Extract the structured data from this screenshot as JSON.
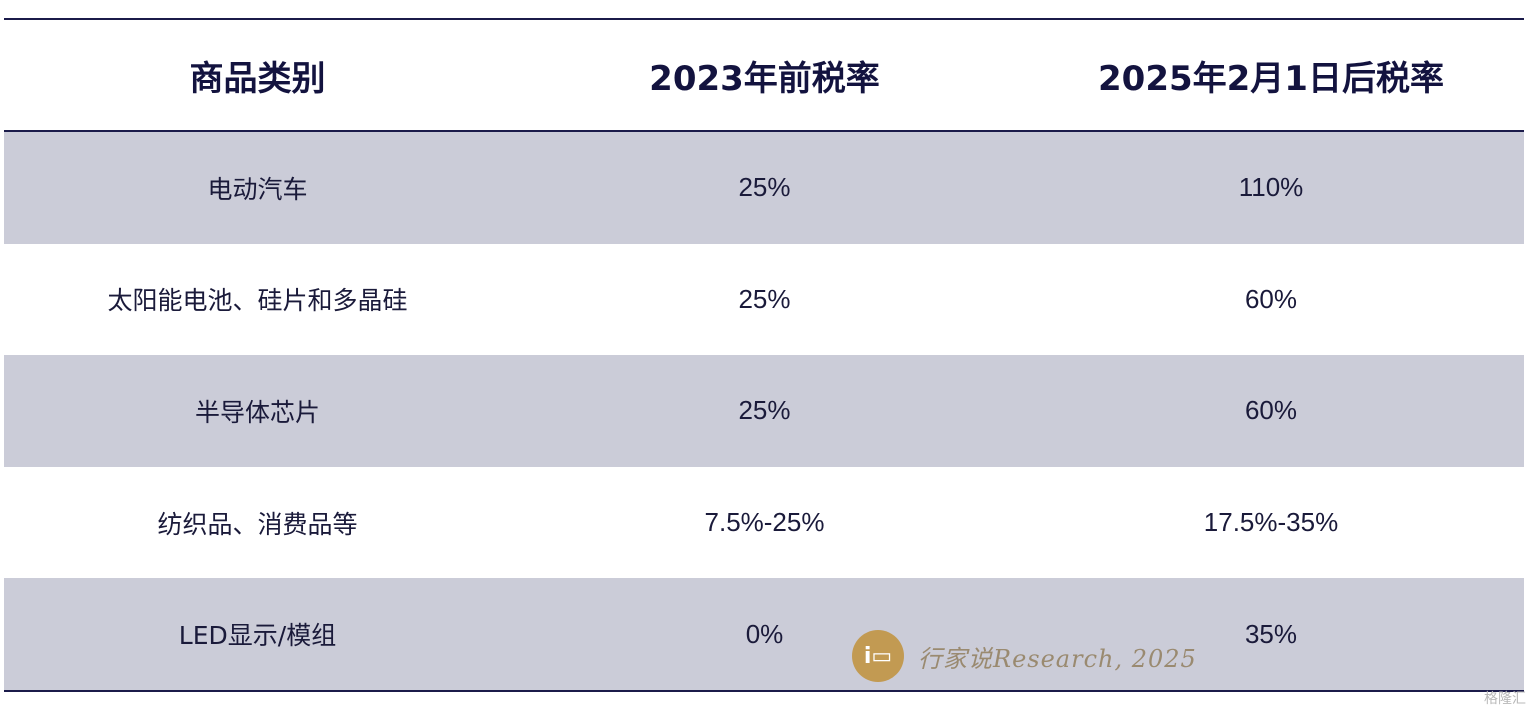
{
  "chart_data": {
    "type": "table",
    "columns": [
      "商品类别",
      "2023年前税率",
      "2025年2月1日后税率"
    ],
    "rows": [
      [
        "电动汽车",
        "25%",
        "110%"
      ],
      [
        "太阳能电池、硅片和多晶硅",
        "25%",
        "60%"
      ],
      [
        "半导体芯片",
        "25%",
        "60%"
      ],
      [
        "纺织品、消费品等",
        "7.5%-25%",
        "17.5%-35%"
      ],
      [
        "LED显示/模组",
        "0%",
        "35%"
      ]
    ]
  },
  "colors": {
    "header_text": "#13133f",
    "row_shade": "#cbccd8",
    "rule": "#1b1b4a",
    "watermark_gold": "#c29a52"
  },
  "watermark": {
    "logo_glyph": "i▭",
    "text": "行家说Research, 2025"
  },
  "corner_mark": "格隆汇"
}
